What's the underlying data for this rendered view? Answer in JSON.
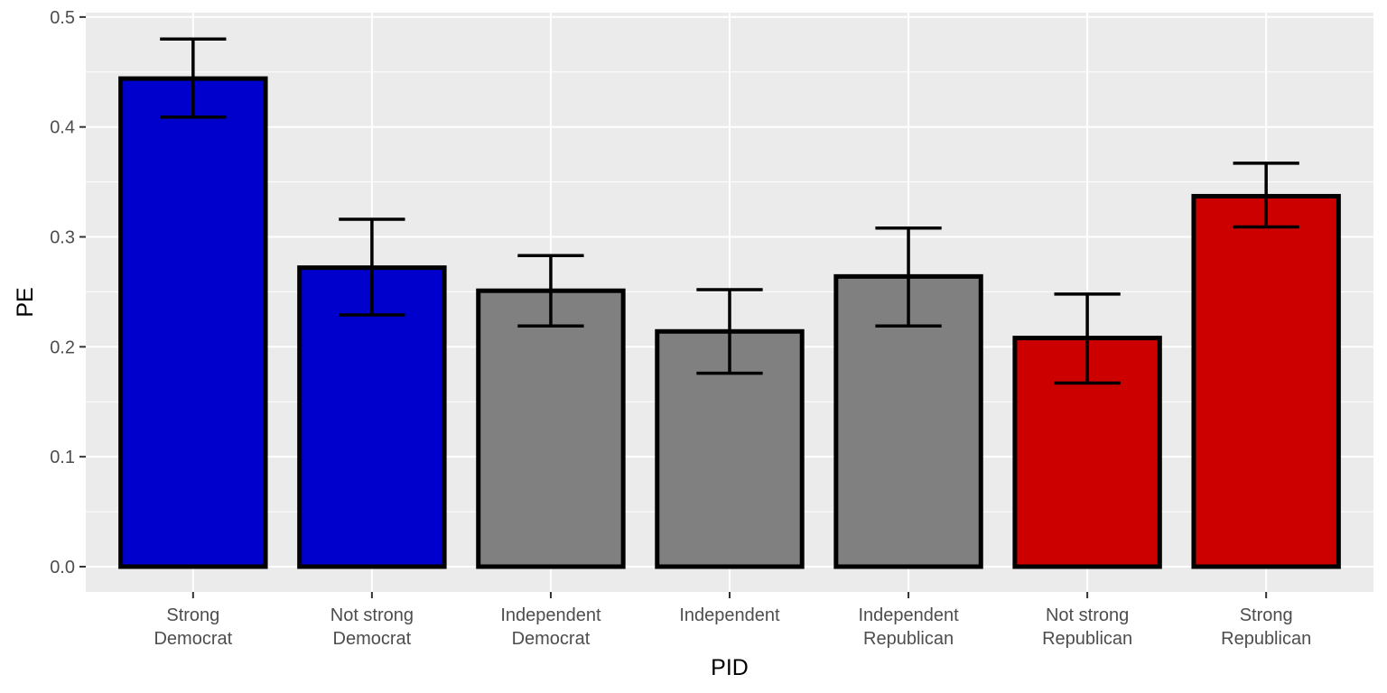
{
  "chart_data": {
    "type": "bar",
    "title": "",
    "xlabel": "PID",
    "ylabel": "PE",
    "ylim": [
      -0.023,
      0.504
    ],
    "yticks": [
      0.0,
      0.1,
      0.2,
      0.3,
      0.4,
      0.5
    ],
    "ytick_labels": [
      "0.0",
      "0.1",
      "0.2",
      "0.3",
      "0.4",
      "0.5"
    ],
    "grid": true,
    "legend": "none",
    "categories": [
      [
        "Strong",
        "Democrat"
      ],
      [
        "Not strong",
        "Democrat"
      ],
      [
        "Independent",
        "Democrat"
      ],
      [
        "Independent"
      ],
      [
        "Independent",
        "Republican"
      ],
      [
        "Not strong",
        "Republican"
      ],
      [
        "Strong",
        "Republican"
      ]
    ],
    "values": [
      0.444,
      0.272,
      0.251,
      0.214,
      0.264,
      0.208,
      0.337
    ],
    "error_lower": [
      0.409,
      0.229,
      0.219,
      0.176,
      0.219,
      0.167,
      0.309
    ],
    "error_upper": [
      0.48,
      0.316,
      0.283,
      0.252,
      0.308,
      0.248,
      0.367
    ],
    "bar_colors": [
      "#0000CD",
      "#0000CD",
      "#808080",
      "#808080",
      "#808080",
      "#CD0000",
      "#CD0000"
    ],
    "bar_outline_color": "#000000",
    "panel_background": "#EBEBEB",
    "gridline_color": "#FFFFFF"
  }
}
